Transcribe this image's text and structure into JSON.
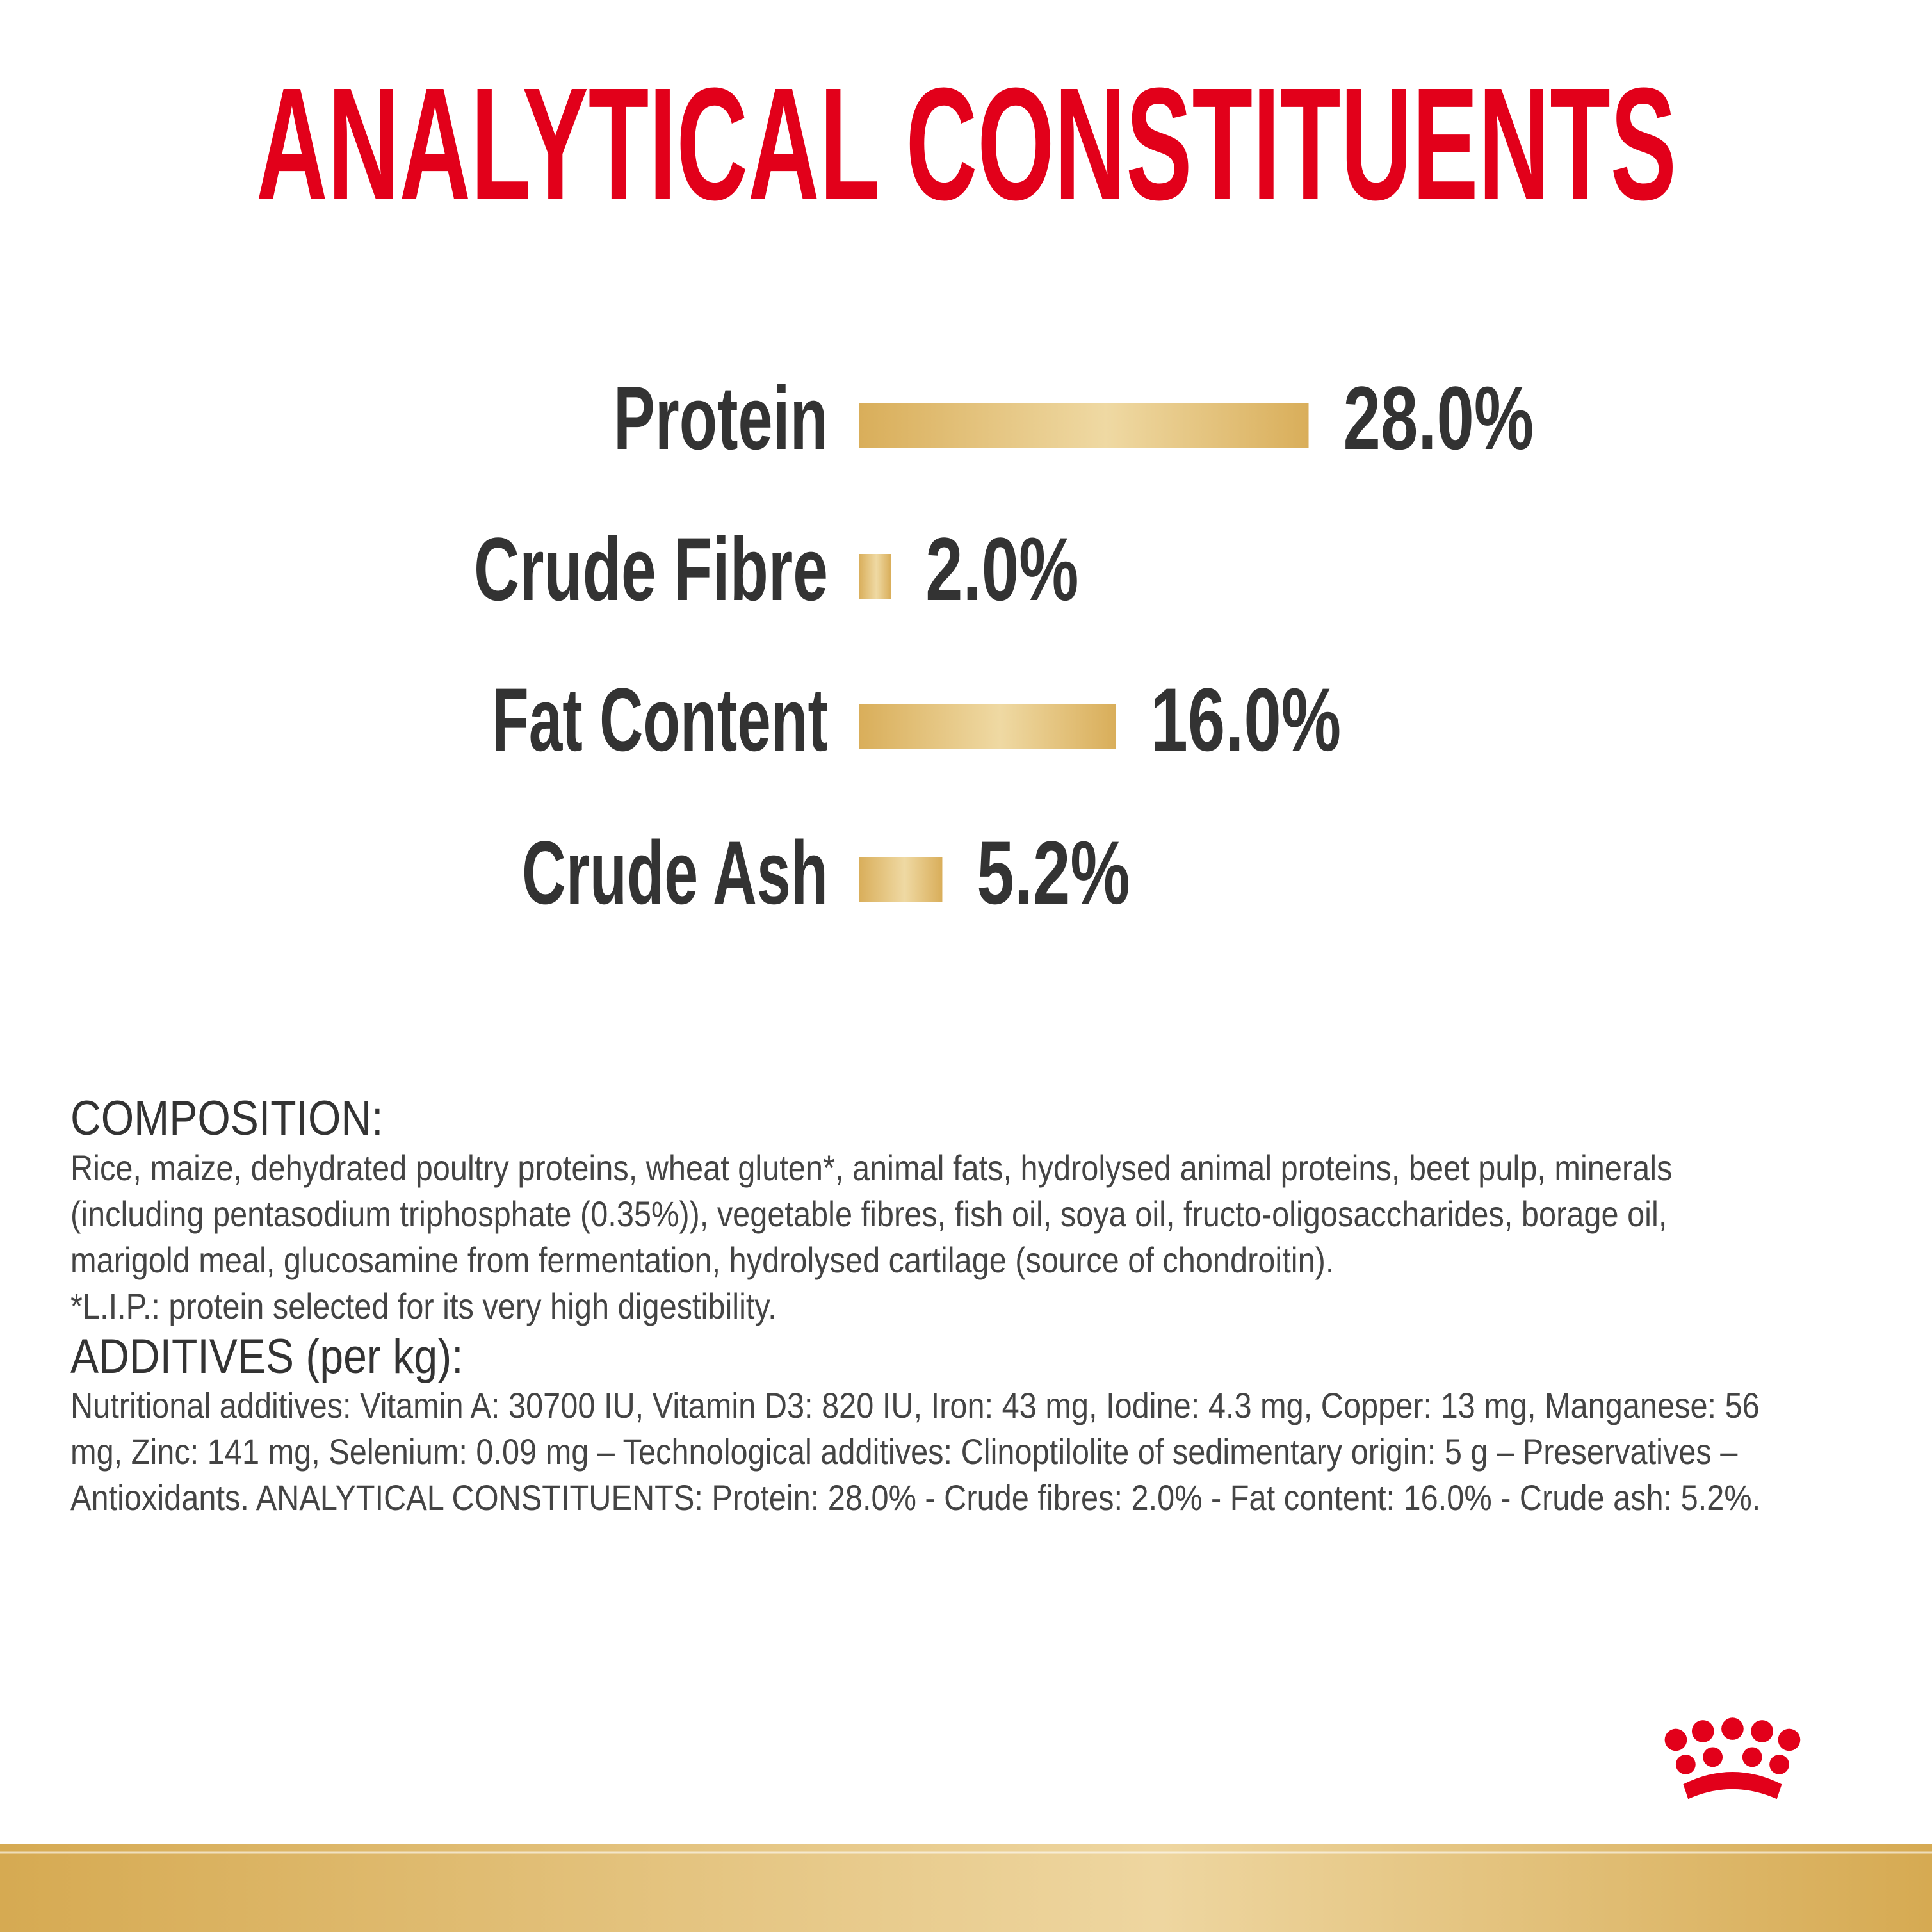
{
  "chart_data": {
    "type": "bar",
    "orientation": "horizontal",
    "title": "ANALYTICAL CONSTITUENTS",
    "categories": [
      "Protein",
      "Crude Fibre",
      "Fat Content",
      "Crude Ash"
    ],
    "values": [
      28.0,
      2.0,
      16.0,
      5.2
    ],
    "value_labels": [
      "28.0%",
      "2.0%",
      "16.0%",
      "5.2%"
    ],
    "color": "#d9ae5a"
  },
  "composition": {
    "heading": "COMPOSITION:",
    "lines": [
      "Rice, maize, dehydrated poultry proteins, wheat gluten*, animal fats, hydrolysed animal proteins, beet pulp, minerals",
      "(including pentasodium triphosphate (0.35%)), vegetable fibres, fish oil, soya oil, fructo-oligosaccharides, borage oil,",
      "marigold meal, glucosamine from fermentation, hydrolysed cartilage (source of chondroitin).",
      "*L.I.P.: protein selected for its very high digestibility."
    ]
  },
  "additives": {
    "heading": "ADDITIVES (per kg):",
    "lines": [
      "Nutritional additives: Vitamin A: 30700 IU, Vitamin D3: 820 IU, Iron: 43 mg, Iodine: 4.3 mg, Copper: 13 mg, Manganese: 56",
      "mg, Zinc: 141 mg, Selenium: 0.09 mg – Technological additives: Clinoptilolite of sedimentary origin: 5 g – Preservatives –",
      "Antioxidants. ANALYTICAL CONSTITUENTS: Protein: 28.0% - Crude fibres: 2.0% - Fat content: 16.0% - Crude ash: 5.2%."
    ]
  }
}
